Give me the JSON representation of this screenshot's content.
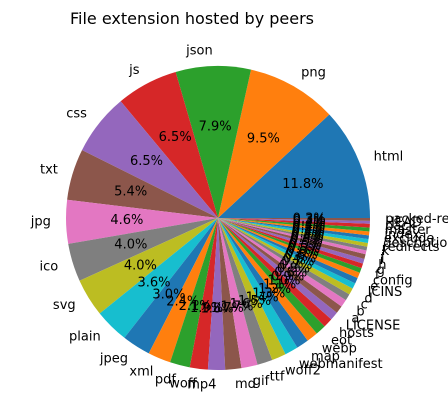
{
  "chart_data": {
    "type": "pie",
    "title": "File extension hosted by peers",
    "start_angle_deg": 0,
    "direction": "counterclockwise",
    "colors": [
      "#1f77b4",
      "#ff7f0e",
      "#2ca02c",
      "#d62728",
      "#9467bd",
      "#8c564b",
      "#e377c2",
      "#7f7f7f",
      "#bcbd22",
      "#17becf"
    ],
    "slices": [
      {
        "label": "html",
        "value": 11.8,
        "pct_label": "11.8%"
      },
      {
        "label": "png",
        "value": 9.5,
        "pct_label": "9.5%"
      },
      {
        "label": "json",
        "value": 7.9,
        "pct_label": "7.9%"
      },
      {
        "label": "js",
        "value": 6.5,
        "pct_label": "6.5%"
      },
      {
        "label": "css",
        "value": 6.5,
        "pct_label": "6.5%"
      },
      {
        "label": "txt",
        "value": 5.4,
        "pct_label": "5.4%"
      },
      {
        "label": "jpg",
        "value": 4.6,
        "pct_label": "4.6%"
      },
      {
        "label": "ico",
        "value": 4.0,
        "pct_label": "4.0%"
      },
      {
        "label": "svg",
        "value": 4.0,
        "pct_label": "4.0%"
      },
      {
        "label": "plain",
        "value": 3.6,
        "pct_label": "3.6%"
      },
      {
        "label": "jpeg",
        "value": 3.0,
        "pct_label": "3.0%"
      },
      {
        "label": "xml",
        "value": 2.4,
        "pct_label": "2.4%"
      },
      {
        "label": "pdf",
        "value": 2.1,
        "pct_label": "2.1%"
      },
      {
        "label": "woff",
        "value": 1.9,
        "pct_label": "1.9%"
      },
      {
        "label": "mp4",
        "value": 1.8,
        "pct_label": "1.8%"
      },
      {
        "label": "md",
        "value": 1.7,
        "pct_label": "1.7%"
      },
      {
        "label": "gif",
        "value": 1.7,
        "pct_label": "1.7%"
      },
      {
        "label": "ttf",
        "value": 1.6,
        "pct_label": "1.6%"
      },
      {
        "label": "woff2",
        "value": 1.5,
        "pct_label": "1.5%"
      },
      {
        "label": "webmanifest",
        "value": 1.4,
        "pct_label": "1.4%"
      },
      {
        "label": "map",
        "value": 1.3,
        "pct_label": "1.3%"
      },
      {
        "label": "webp",
        "value": 1.2,
        "pct_label": "1.2%"
      },
      {
        "label": "eot",
        "value": 1.1,
        "pct_label": "1.1%"
      },
      {
        "label": "hosts",
        "value": 1.0,
        "pct_label": "1.0%"
      },
      {
        "label": "LICENSE",
        "value": 0.9,
        "pct_label": "0.9%"
      },
      {
        "label": "a",
        "value": 0.8,
        "pct_label": "0.8%"
      },
      {
        "label": "b",
        "value": 0.8,
        "pct_label": "0.8%"
      },
      {
        "label": "c",
        "value": 0.7,
        "pct_label": "0.7%"
      },
      {
        "label": "d",
        "value": 0.7,
        "pct_label": "0.7%"
      },
      {
        "label": "ICINS",
        "value": 0.6,
        "pct_label": "0.6%"
      },
      {
        "label": "e",
        "value": 0.6,
        "pct_label": "0.6%"
      },
      {
        "label": "config",
        "value": 0.6,
        "pct_label": "0.6%"
      },
      {
        "label": "f",
        "value": 0.5,
        "pct_label": "0.5%"
      },
      {
        "label": "g",
        "value": 0.5,
        "pct_label": "0.5%"
      },
      {
        "label": "h",
        "value": 0.5,
        "pct_label": "0.5%"
      },
      {
        "label": "i",
        "value": 0.5,
        "pct_label": "0.5%"
      },
      {
        "label": "j",
        "value": 0.4,
        "pct_label": "0.4%"
      },
      {
        "label": "k",
        "value": 0.4,
        "pct_label": "0.4%"
      },
      {
        "label": "redirects",
        "value": 0.4,
        "pct_label": "0.4%"
      },
      {
        "label": "description",
        "value": 0.4,
        "pct_label": "0.4%"
      },
      {
        "label": "exclude",
        "value": 0.4,
        "pct_label": "0.4%"
      },
      {
        "label": "index",
        "value": 0.4,
        "pct_label": "0.4%"
      },
      {
        "label": "master",
        "value": 0.4,
        "pct_label": "0.4%"
      },
      {
        "label": "pack",
        "value": 0.4,
        "pct_label": "0.4%"
      },
      {
        "label": "HEAD",
        "value": 0.3,
        "pct_label": "0.3%"
      },
      {
        "label": "packed-refs",
        "value": 0.3,
        "pct_label": "0.3%"
      }
    ]
  }
}
